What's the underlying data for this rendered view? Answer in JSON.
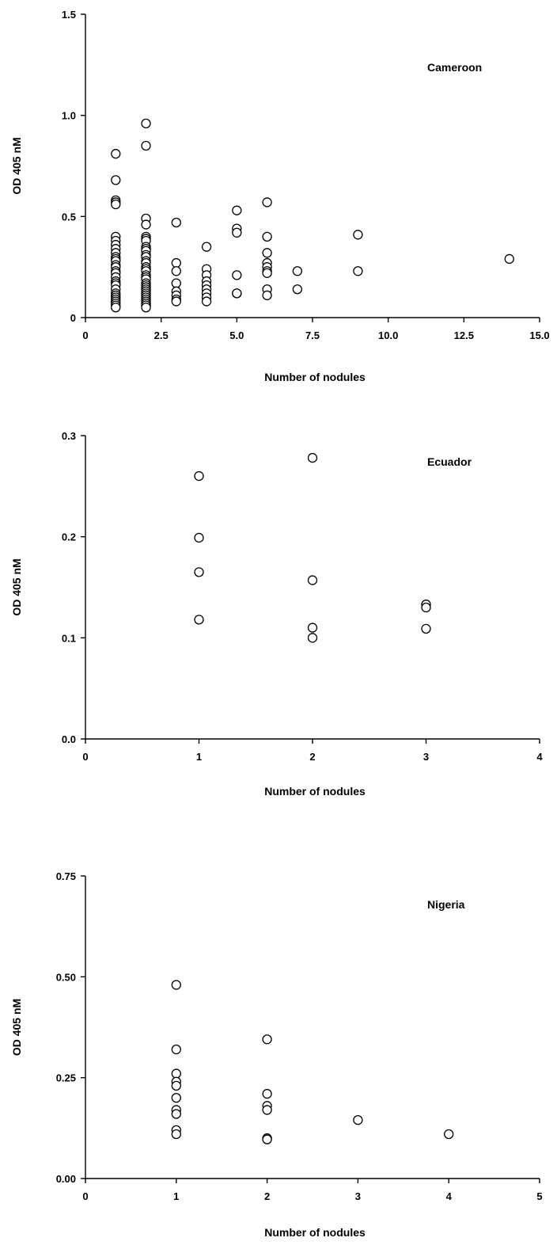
{
  "chart_data": [
    {
      "type": "scatter",
      "title": "Cameroon",
      "xlabel": "Number of nodules",
      "ylabel": "OD 405 nM",
      "xlim": [
        0,
        15
      ],
      "ylim": [
        0,
        1.5
      ],
      "xticks": [
        0,
        2.5,
        5.0,
        7.5,
        10.0,
        12.5,
        15.0
      ],
      "xtick_labels": [
        "0",
        "2.5",
        "5.0",
        "7.5",
        "10.0",
        "12.5",
        "15.0"
      ],
      "yticks": [
        0,
        0.5,
        1.0,
        1.5
      ],
      "ytick_labels": [
        "0",
        "0.5",
        "1.0",
        "1.5"
      ],
      "grid": false,
      "series": [
        {
          "x": [
            1,
            1,
            1,
            1,
            1,
            1,
            1,
            1,
            1,
            1,
            1,
            1,
            1,
            1,
            1,
            1,
            1,
            1,
            1,
            1,
            1,
            1,
            1,
            1,
            1,
            1,
            1,
            1,
            1,
            1,
            2,
            2,
            2,
            2,
            2,
            2,
            2,
            2,
            2,
            2,
            2,
            2,
            2,
            2,
            2,
            2,
            2,
            2,
            2,
            2,
            2,
            2,
            2,
            2,
            2,
            2,
            2,
            2,
            2,
            2,
            2,
            2,
            2,
            2,
            2,
            3,
            3,
            3,
            3,
            3,
            3,
            3,
            3,
            4,
            4,
            4,
            4,
            4,
            4,
            4,
            4,
            4,
            5,
            5,
            5,
            5,
            5,
            5,
            6,
            6,
            6,
            6,
            6,
            6,
            6,
            6,
            6,
            7,
            7,
            9,
            9,
            14
          ],
          "y": [
            0.81,
            0.68,
            0.58,
            0.57,
            0.56,
            0.4,
            0.38,
            0.36,
            0.34,
            0.32,
            0.3,
            0.29,
            0.28,
            0.26,
            0.25,
            0.23,
            0.22,
            0.2,
            0.18,
            0.17,
            0.16,
            0.14,
            0.12,
            0.11,
            0.1,
            0.09,
            0.08,
            0.07,
            0.06,
            0.05,
            0.96,
            0.85,
            0.49,
            0.46,
            0.4,
            0.39,
            0.38,
            0.35,
            0.34,
            0.33,
            0.31,
            0.3,
            0.28,
            0.27,
            0.25,
            0.24,
            0.23,
            0.21,
            0.2,
            0.19,
            0.17,
            0.16,
            0.15,
            0.14,
            0.13,
            0.12,
            0.11,
            0.1,
            0.09,
            0.08,
            0.07,
            0.07,
            0.06,
            0.06,
            0.05,
            0.47,
            0.27,
            0.23,
            0.17,
            0.13,
            0.11,
            0.09,
            0.08,
            0.35,
            0.24,
            0.21,
            0.18,
            0.16,
            0.14,
            0.12,
            0.1,
            0.08,
            0.53,
            0.44,
            0.42,
            0.21,
            0.12,
            0.12,
            0.57,
            0.4,
            0.32,
            0.27,
            0.25,
            0.23,
            0.22,
            0.14,
            0.11,
            0.23,
            0.14,
            0.41,
            0.23,
            0.29
          ]
        }
      ]
    },
    {
      "type": "scatter",
      "title": "Ecuador",
      "xlabel": "Number of nodules",
      "ylabel": "OD 405 nM",
      "xlim": [
        0,
        4
      ],
      "ylim": [
        0,
        0.3
      ],
      "xticks": [
        0,
        1,
        2,
        3,
        4
      ],
      "xtick_labels": [
        "0",
        "1",
        "2",
        "3",
        "4"
      ],
      "yticks": [
        0,
        0.1,
        0.2,
        0.3
      ],
      "ytick_labels": [
        "0.0",
        "0.1",
        "0.2",
        "0.3"
      ],
      "grid": false,
      "series": [
        {
          "x": [
            1,
            1,
            1,
            1,
            2,
            2,
            2,
            2,
            3,
            3,
            3
          ],
          "y": [
            0.26,
            0.199,
            0.165,
            0.118,
            0.278,
            0.157,
            0.11,
            0.1,
            0.133,
            0.13,
            0.109
          ]
        }
      ]
    },
    {
      "type": "scatter",
      "title": "Nigeria",
      "xlabel": "Number of nodules",
      "ylabel": "OD 405 nM",
      "xlim": [
        0,
        5
      ],
      "ylim": [
        0,
        0.75
      ],
      "xticks": [
        0,
        1,
        2,
        3,
        4,
        5
      ],
      "xtick_labels": [
        "0",
        "1",
        "2",
        "3",
        "4",
        "5"
      ],
      "yticks": [
        0,
        0.25,
        0.5,
        0.75
      ],
      "ytick_labels": [
        "0.00",
        "0.25",
        "0.50",
        "0.75"
      ],
      "grid": false,
      "series": [
        {
          "x": [
            1,
            1,
            1,
            1,
            1,
            1,
            1,
            1,
            1,
            1,
            2,
            2,
            2,
            2,
            2,
            2,
            3,
            4
          ],
          "y": [
            0.48,
            0.32,
            0.26,
            0.24,
            0.23,
            0.2,
            0.17,
            0.16,
            0.12,
            0.11,
            0.345,
            0.21,
            0.18,
            0.17,
            0.1,
            0.097,
            0.145,
            0.11
          ]
        }
      ]
    }
  ]
}
